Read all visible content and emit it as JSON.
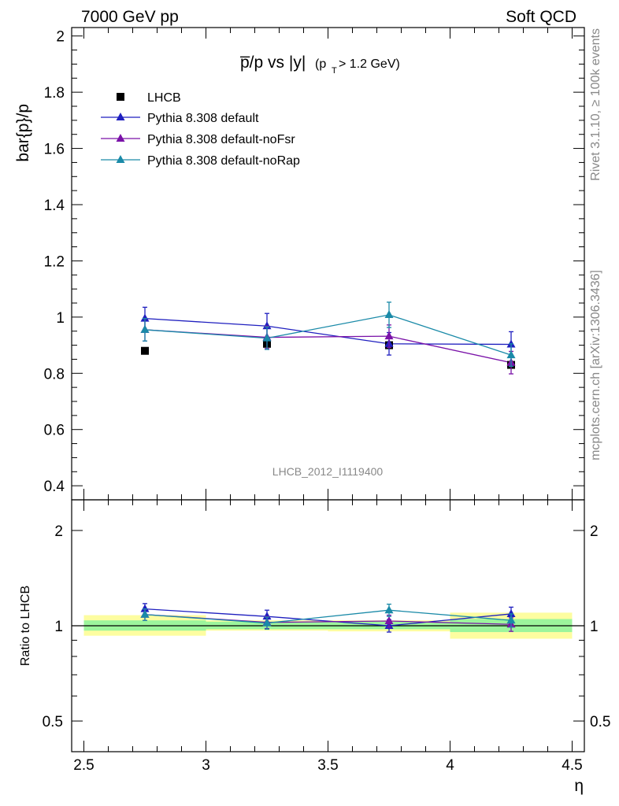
{
  "header": {
    "left": "7000 GeV pp",
    "right": "Soft QCD"
  },
  "side_labels": {
    "rivet": "Rivet 3.1.10, ≥ 100k events",
    "mcplots": "mcplots.cern.ch [arXiv:1306.3436]"
  },
  "colors": {
    "LHCB": "#000000",
    "Pythia 8.308 default": "#1f1fbf",
    "Pythia 8.308 default-noFsr": "#7a12a8",
    "Pythia 8.308 default-noRap": "#1a8aa8",
    "band_inner": "#9cf59c",
    "band_outer": "#fdfda0"
  },
  "chart_data": [
    {
      "type": "line",
      "title_main": "p̅/p vs |y|",
      "title_sub": "(p",
      "title_sub_index": "T",
      "title_sub_tail": " > 1.2 GeV)",
      "ylabel": "bar{p}/p",
      "xlabel": "",
      "reference_label": "LHCB_2012_I1119400",
      "xlim": [
        2.45,
        4.55
      ],
      "ylim": [
        0.35,
        2.03
      ],
      "yticks": [
        0.4,
        0.6,
        0.8,
        1.0,
        1.2,
        1.4,
        1.6,
        1.8,
        2.0
      ],
      "ytick_labels": [
        "0.4",
        "0.6",
        "0.8",
        "1",
        "1.2",
        "1.4",
        "1.6",
        "1.8",
        "2"
      ],
      "legend_position": "top-left",
      "x": [
        2.75,
        3.25,
        3.75,
        4.25
      ],
      "series": [
        {
          "name": "LHCB",
          "marker": "square",
          "values": [
            0.88,
            0.905,
            0.9,
            0.83
          ],
          "errors": [
            0.0,
            0.0,
            0.0,
            0.0
          ]
        },
        {
          "name": "Pythia 8.308 default",
          "marker": "triangle",
          "values": [
            0.995,
            0.968,
            0.905,
            0.903
          ],
          "errors": [
            0.04,
            0.045,
            0.04,
            0.045
          ]
        },
        {
          "name": "Pythia 8.308 default-noFsr",
          "marker": "triangle",
          "values": [
            0.955,
            0.928,
            0.932,
            0.838
          ],
          "errors": [
            0.04,
            0.04,
            0.04,
            0.04
          ]
        },
        {
          "name": "Pythia 8.308 default-noRap",
          "marker": "triangle",
          "values": [
            0.955,
            0.925,
            1.008,
            0.865
          ],
          "errors": [
            0.04,
            0.04,
            0.045,
            0.04
          ]
        }
      ]
    },
    {
      "type": "line",
      "ylabel": "Ratio to LHCB",
      "xlabel": "η",
      "xlim": [
        2.45,
        4.55
      ],
      "ylim": [
        0.4,
        2.5
      ],
      "yscale": "log",
      "yticks": [
        0.5,
        1,
        2
      ],
      "ytick_labels": [
        "0.5",
        "1",
        "2"
      ],
      "xticks": [
        2.5,
        3,
        3.5,
        4,
        4.5
      ],
      "xtick_labels": [
        "2.5",
        "3",
        "3.5",
        "4",
        "4.5"
      ],
      "bins": [
        [
          2.5,
          3.0
        ],
        [
          3.0,
          3.5
        ],
        [
          3.5,
          4.0
        ],
        [
          4.0,
          4.5
        ]
      ],
      "band_inner": [
        [
          0.965,
          1.04
        ],
        [
          0.975,
          1.03
        ],
        [
          0.975,
          1.03
        ],
        [
          0.955,
          1.05
        ]
      ],
      "band_outer": [
        [
          0.93,
          1.08
        ],
        [
          0.965,
          1.04
        ],
        [
          0.96,
          1.04
        ],
        [
          0.91,
          1.1
        ]
      ],
      "x": [
        2.75,
        3.25,
        3.75,
        4.25
      ],
      "series": [
        {
          "name": "Pythia 8.308 default",
          "values": [
            1.13,
            1.07,
            1.0,
            1.09
          ],
          "errors": [
            0.045,
            0.05,
            0.045,
            0.055
          ]
        },
        {
          "name": "Pythia 8.308 default-noFsr",
          "values": [
            1.085,
            1.025,
            1.035,
            1.01
          ],
          "errors": [
            0.045,
            0.045,
            0.045,
            0.05
          ]
        },
        {
          "name": "Pythia 8.308 default-noRap",
          "values": [
            1.085,
            1.02,
            1.12,
            1.04
          ],
          "errors": [
            0.045,
            0.045,
            0.05,
            0.05
          ]
        }
      ]
    }
  ]
}
